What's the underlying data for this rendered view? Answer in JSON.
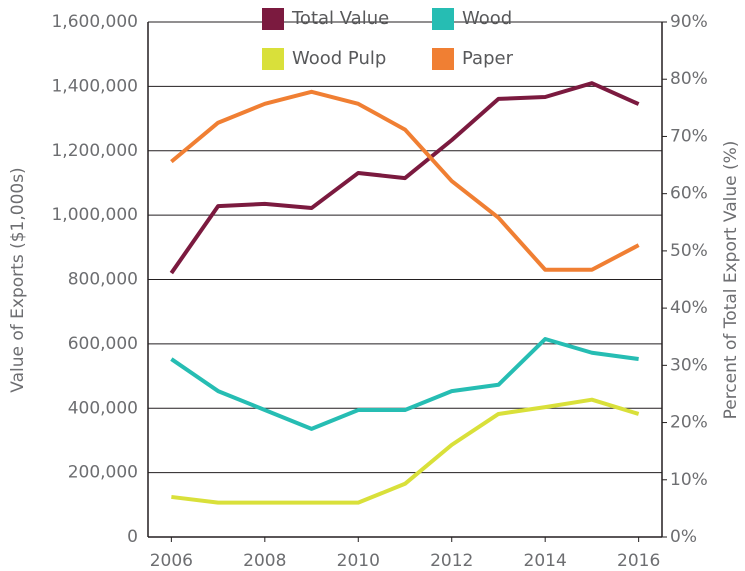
{
  "chart_data": {
    "type": "line",
    "x": [
      2006,
      2007,
      2008,
      2009,
      2010,
      2011,
      2012,
      2013,
      2014,
      2015,
      2016
    ],
    "series": [
      {
        "name": "Total Value",
        "color": "#7b1a3f",
        "values": [
          820000,
          1028000,
          1035000,
          1022000,
          1131000,
          1115000,
          1233000,
          1361000,
          1367000,
          1410000,
          1345000
        ]
      },
      {
        "name": "Wood",
        "color": "#26bdb3",
        "axis": "y2",
        "values": [
          31.1,
          25.5,
          22.2,
          18.9,
          22.2,
          22.2,
          25.5,
          26.6,
          34.6,
          32.2,
          31.1
        ]
      },
      {
        "name": "Wood Pulp",
        "color": "#d9e03a",
        "axis": "y2",
        "values": [
          7.0,
          6.0,
          6.0,
          6.0,
          6.0,
          9.3,
          16.1,
          21.5,
          22.7,
          24.0,
          21.5
        ]
      },
      {
        "name": "Paper",
        "color": "#f07f33",
        "axis": "y2",
        "values": [
          65.6,
          72.4,
          75.7,
          77.8,
          75.7,
          71.2,
          62.2,
          55.8,
          46.7,
          46.7,
          51.0
        ]
      }
    ],
    "y_label": "Value of Exports ($1,000s)",
    "y2_label": "Percent of Total Export Value (%)",
    "xlim": [
      2005.5,
      2016.5
    ],
    "xticks": [
      2006,
      2008,
      2010,
      2012,
      2014,
      2016
    ],
    "ylim": [
      0,
      1600000
    ],
    "yticks": [
      0,
      {
        "value": 200000,
        "label": "200,000"
      },
      {
        "value": 400000,
        "label": "400,000"
      },
      {
        "value": 600000,
        "label": "600,000"
      },
      {
        "value": 800000,
        "label": "800,000"
      },
      {
        "value": 1000000,
        "label": "1,000,000"
      },
      {
        "value": 1200000,
        "label": "1,200,000"
      },
      {
        "value": 1400000,
        "label": "1,400,000"
      },
      {
        "value": 1600000,
        "label": "1,600,000"
      }
    ],
    "y2lim": [
      0,
      90
    ],
    "y2ticks": [
      {
        "value": 0,
        "label": "0%"
      },
      {
        "value": 10,
        "label": "10%"
      },
      {
        "value": 20,
        "label": "20%"
      },
      {
        "value": 30,
        "label": "30%"
      },
      {
        "value": 40,
        "label": "40%"
      },
      {
        "value": 50,
        "label": "50%"
      },
      {
        "value": 60,
        "label": "60%"
      },
      {
        "value": 70,
        "label": "70%"
      },
      {
        "value": 80,
        "label": "80%"
      },
      {
        "value": 90,
        "label": "90%"
      }
    ],
    "grid": true,
    "legend": "top"
  }
}
